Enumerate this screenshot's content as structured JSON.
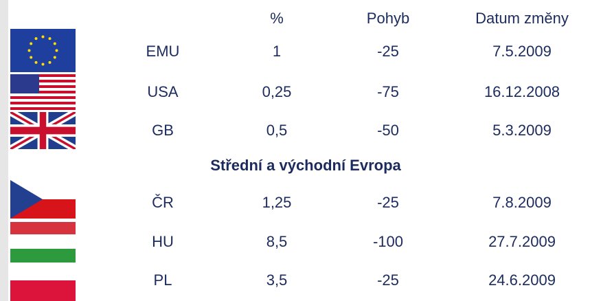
{
  "table": {
    "header": [
      "%",
      "Pohyb",
      "Datum změny"
    ],
    "groups": [
      {
        "rows": [
          [
            "EMU",
            "1",
            "-25",
            "7.5.2009"
          ],
          [
            "USA",
            "0,25",
            "-75",
            "16.12.2008"
          ],
          [
            "GB",
            "0,5",
            "-50",
            "5.3.2009"
          ]
        ]
      },
      {
        "title": "Střední a východní Evropa",
        "rows": [
          [
            "ČR",
            "1,25",
            "-25",
            "7.8.2009"
          ],
          [
            "HU",
            "8,5",
            "-100",
            "27.7.2009"
          ],
          [
            "PL",
            "3,5",
            "-25",
            "24.6.2009"
          ]
        ]
      }
    ]
  }
}
